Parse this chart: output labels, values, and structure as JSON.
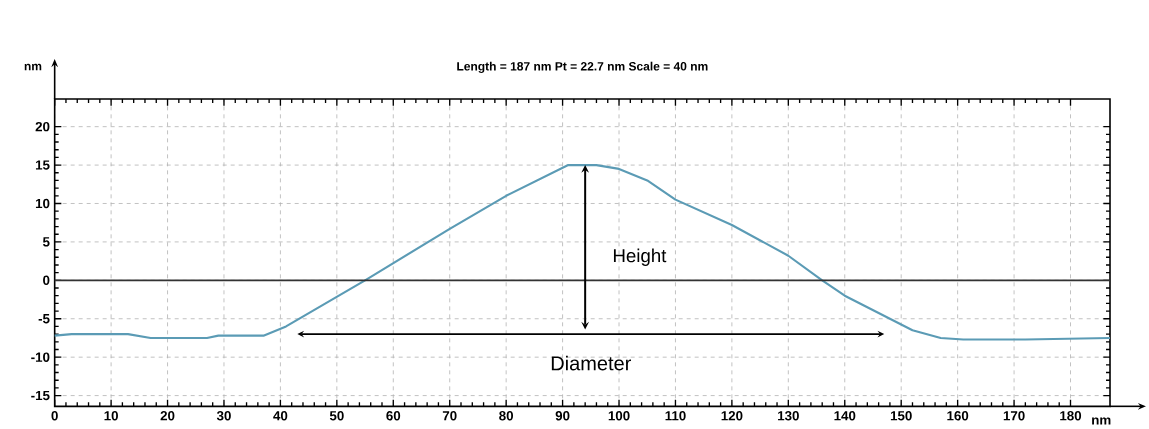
{
  "chart_data": {
    "type": "line",
    "title": "Length = 187 nm  Pt = 22.7 nm  Scale = 40 nm",
    "xlabel": "nm",
    "ylabel": "nm",
    "x": [
      0,
      3,
      13,
      17,
      27,
      29,
      37,
      41,
      55,
      70,
      80,
      91,
      96,
      100,
      105,
      110,
      120,
      130,
      136,
      140,
      148,
      152,
      157,
      161,
      172,
      187
    ],
    "series": [
      {
        "color": "#5b9bb5",
        "values": [
          -7.2,
          -7.0,
          -7.0,
          -7.5,
          -7.5,
          -7.2,
          -7.2,
          -6.0,
          0,
          6.7,
          11,
          15,
          15,
          14.5,
          13,
          10.5,
          7.2,
          3.2,
          0,
          -2,
          -5,
          -6.5,
          -7.5,
          -7.7,
          -7.7,
          -7.5
        ]
      }
    ],
    "xlim": [
      0,
      187
    ],
    "ylim": [
      -16.4,
      23.6
    ],
    "xticks": [
      0,
      10,
      20,
      30,
      40,
      50,
      60,
      70,
      80,
      90,
      100,
      110,
      120,
      130,
      140,
      150,
      160,
      170,
      180
    ],
    "yticks": [
      -15,
      -10,
      -5,
      0,
      5,
      10,
      15,
      20
    ],
    "grid": true,
    "marker": "none",
    "line_style": "solid",
    "ref_lines": [
      {
        "axis": "y",
        "value": 0,
        "color": "#333333"
      }
    ],
    "annotations": [
      "Height",
      "Diameter"
    ]
  }
}
